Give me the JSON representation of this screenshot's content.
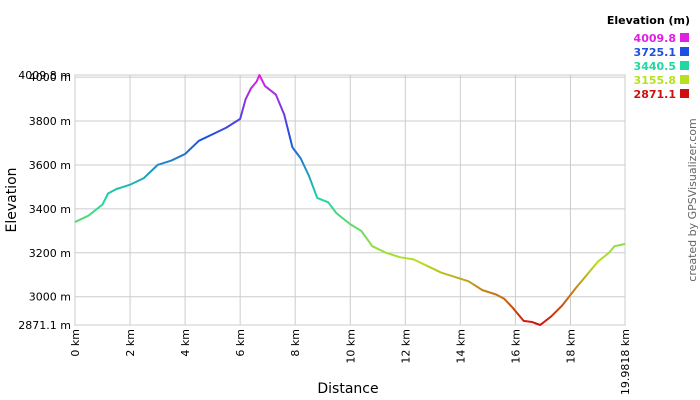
{
  "chart_data": {
    "type": "line",
    "x_label": "Distance",
    "y_label": "Elevation",
    "credit": "created by GPSVisualizer.com",
    "x": [
      0,
      0.5,
      1.0,
      1.2,
      1.5,
      2.0,
      2.5,
      3.0,
      3.5,
      4.0,
      4.5,
      5.0,
      5.5,
      6.0,
      6.2,
      6.4,
      6.6,
      6.7,
      6.9,
      7.3,
      7.6,
      7.9,
      8.2,
      8.5,
      8.8,
      9.2,
      9.5,
      10.0,
      10.4,
      10.8,
      11.3,
      11.8,
      12.3,
      12.8,
      13.3,
      13.8,
      14.3,
      14.8,
      15.3,
      15.6,
      15.9,
      16.3,
      16.6,
      16.9,
      17.3,
      17.7,
      18.2,
      18.6,
      19.0,
      19.4,
      19.6,
      19.9818
    ],
    "series": [
      {
        "name": "Elevation",
        "values": [
          3340,
          3370,
          3420,
          3470,
          3490,
          3510,
          3540,
          3600,
          3620,
          3650,
          3710,
          3740,
          3770,
          3810,
          3900,
          3950,
          3980,
          4009.8,
          3960,
          3920,
          3830,
          3680,
          3630,
          3550,
          3450,
          3430,
          3380,
          3330,
          3300,
          3230,
          3200,
          3180,
          3170,
          3140,
          3110,
          3090,
          3070,
          3030,
          3010,
          2990,
          2950,
          2890,
          2885,
          2871.1,
          2910,
          2960,
          3040,
          3100,
          3160,
          3200,
          3230,
          3240
        ]
      }
    ],
    "xlim": [
      0,
      19.9818
    ],
    "ylim": [
      2871.1,
      4009.8
    ],
    "xticks": [
      {
        "value": 0,
        "label": "0 km"
      },
      {
        "value": 2,
        "label": "2 km"
      },
      {
        "value": 4,
        "label": "4 km"
      },
      {
        "value": 6,
        "label": "6 km"
      },
      {
        "value": 8,
        "label": "8 km"
      },
      {
        "value": 10,
        "label": "10 km"
      },
      {
        "value": 12,
        "label": "12 km"
      },
      {
        "value": 14,
        "label": "14 km"
      },
      {
        "value": 16,
        "label": "16 km"
      },
      {
        "value": 18,
        "label": "18 km"
      },
      {
        "value": 19.9818,
        "label": "19.9818 km"
      }
    ],
    "yticks": [
      {
        "value": 2871.1,
        "label": "2871.1 m"
      },
      {
        "value": 3000,
        "label": "3000 m"
      },
      {
        "value": 3200,
        "label": "3200 m"
      },
      {
        "value": 3400,
        "label": "3400 m"
      },
      {
        "value": 3600,
        "label": "3600 m"
      },
      {
        "value": 3800,
        "label": "3800 m"
      },
      {
        "value": 4000,
        "label": "4000 m"
      },
      {
        "value": 4009.8,
        "label": "4009.8 m"
      }
    ],
    "grid": true,
    "legend": {
      "title": "Elevation (m)",
      "entries": [
        {
          "value": 4009.8,
          "color": "#e020e0"
        },
        {
          "value": 3725.1,
          "color": "#1f4fe0"
        },
        {
          "value": 3440.5,
          "color": "#20d8a0"
        },
        {
          "value": 3155.8,
          "color": "#b8e020"
        },
        {
          "value": 2871.1,
          "color": "#d01010"
        }
      ]
    }
  }
}
